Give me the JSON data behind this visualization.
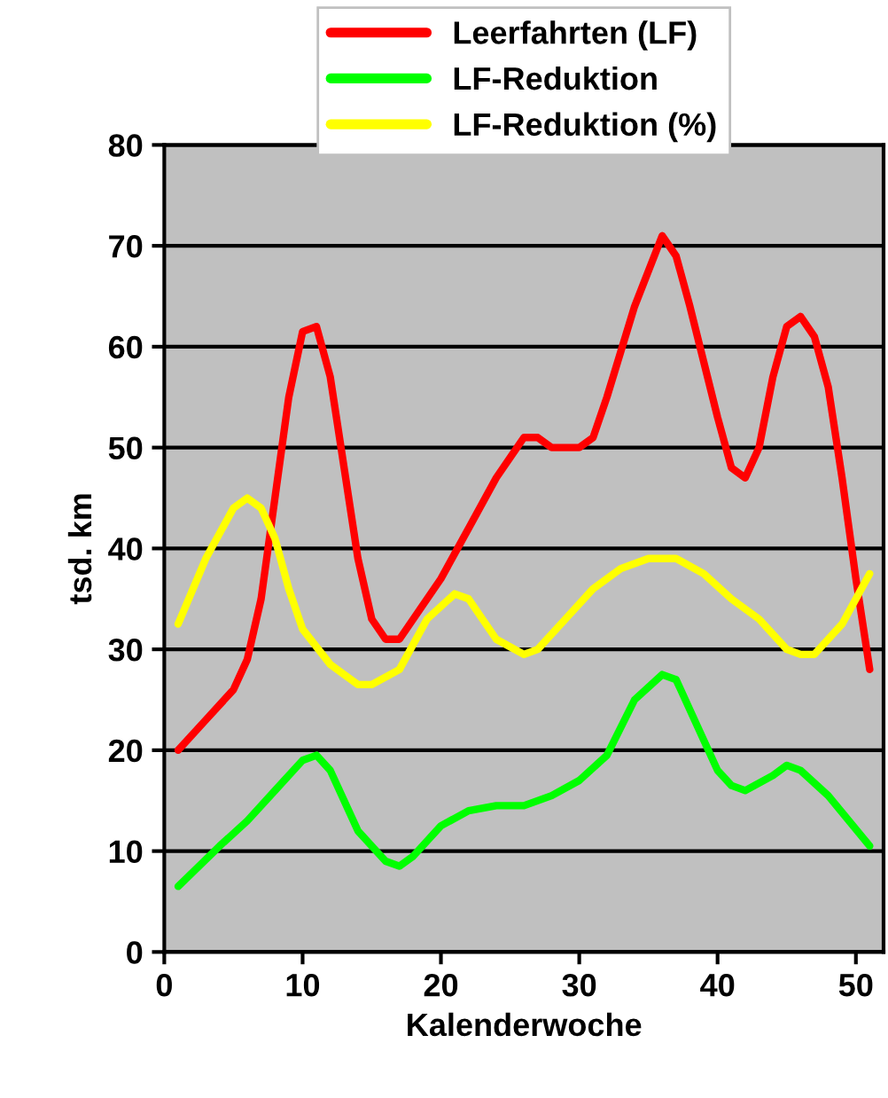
{
  "chart_data": {
    "type": "line",
    "xlabel": "Kalenderwoche",
    "ylabel": "tsd. km",
    "xlim": [
      0,
      52
    ],
    "xticks": [
      0,
      10,
      20,
      30,
      40,
      50
    ],
    "ylim": [
      0,
      80
    ],
    "yticks": [
      0,
      10,
      20,
      30,
      40,
      50,
      60,
      70,
      80
    ],
    "grid": "y",
    "legend": "top",
    "marker": "none",
    "line_style": "solid",
    "series": [
      {
        "name": "Leerfahrten (LF)",
        "color": "#ff0000",
        "x": [
          1,
          3,
          5,
          6,
          7,
          8,
          9,
          10,
          11,
          12,
          13,
          14,
          15,
          16,
          17,
          18,
          20,
          22,
          24,
          26,
          27,
          28,
          30,
          31,
          32,
          34,
          36,
          37,
          38,
          40,
          41,
          42,
          43,
          44,
          45,
          46,
          47,
          48,
          49,
          50,
          51
        ],
        "values": [
          20,
          23,
          26,
          29,
          35,
          45,
          55,
          61.5,
          62,
          57,
          48,
          39,
          33,
          31,
          31,
          33,
          37,
          42,
          47,
          51,
          51,
          50,
          50,
          51,
          55,
          64,
          71,
          69,
          64,
          53,
          48,
          47,
          50,
          57,
          62,
          63,
          61,
          56,
          47,
          37,
          28
        ]
      },
      {
        "name": "LF-Reduktion",
        "color": "#00ff00",
        "x": [
          1,
          4,
          6,
          8,
          10,
          11,
          12,
          14,
          16,
          17,
          18,
          20,
          22,
          24,
          26,
          28,
          30,
          32,
          34,
          36,
          37,
          38,
          40,
          41,
          42,
          44,
          45,
          46,
          48,
          51
        ],
        "values": [
          6.5,
          10.5,
          13,
          16,
          19,
          19.5,
          18,
          12,
          9,
          8.5,
          9.5,
          12.5,
          14,
          14.5,
          14.5,
          15.5,
          17,
          19.5,
          25,
          27.5,
          27,
          24,
          18,
          16.5,
          16,
          17.5,
          18.5,
          18,
          15.5,
          10.5
        ]
      },
      {
        "name": "LF-Reduktion (%)",
        "color": "#ffff00",
        "x": [
          1,
          3,
          5,
          6,
          7,
          8,
          9,
          10,
          12,
          14,
          15,
          17,
          19,
          21,
          22,
          24,
          26,
          27,
          29,
          31,
          33,
          35,
          37,
          39,
          41,
          43,
          45,
          46,
          47,
          49,
          51
        ],
        "values": [
          32.5,
          39,
          44,
          45,
          44,
          41,
          36,
          32,
          28.5,
          26.5,
          26.5,
          28,
          33,
          35.5,
          35,
          31,
          29.5,
          30,
          33,
          36,
          38,
          39,
          39,
          37.5,
          35,
          33,
          30,
          29.5,
          29.5,
          32.5,
          37.5
        ]
      }
    ]
  }
}
